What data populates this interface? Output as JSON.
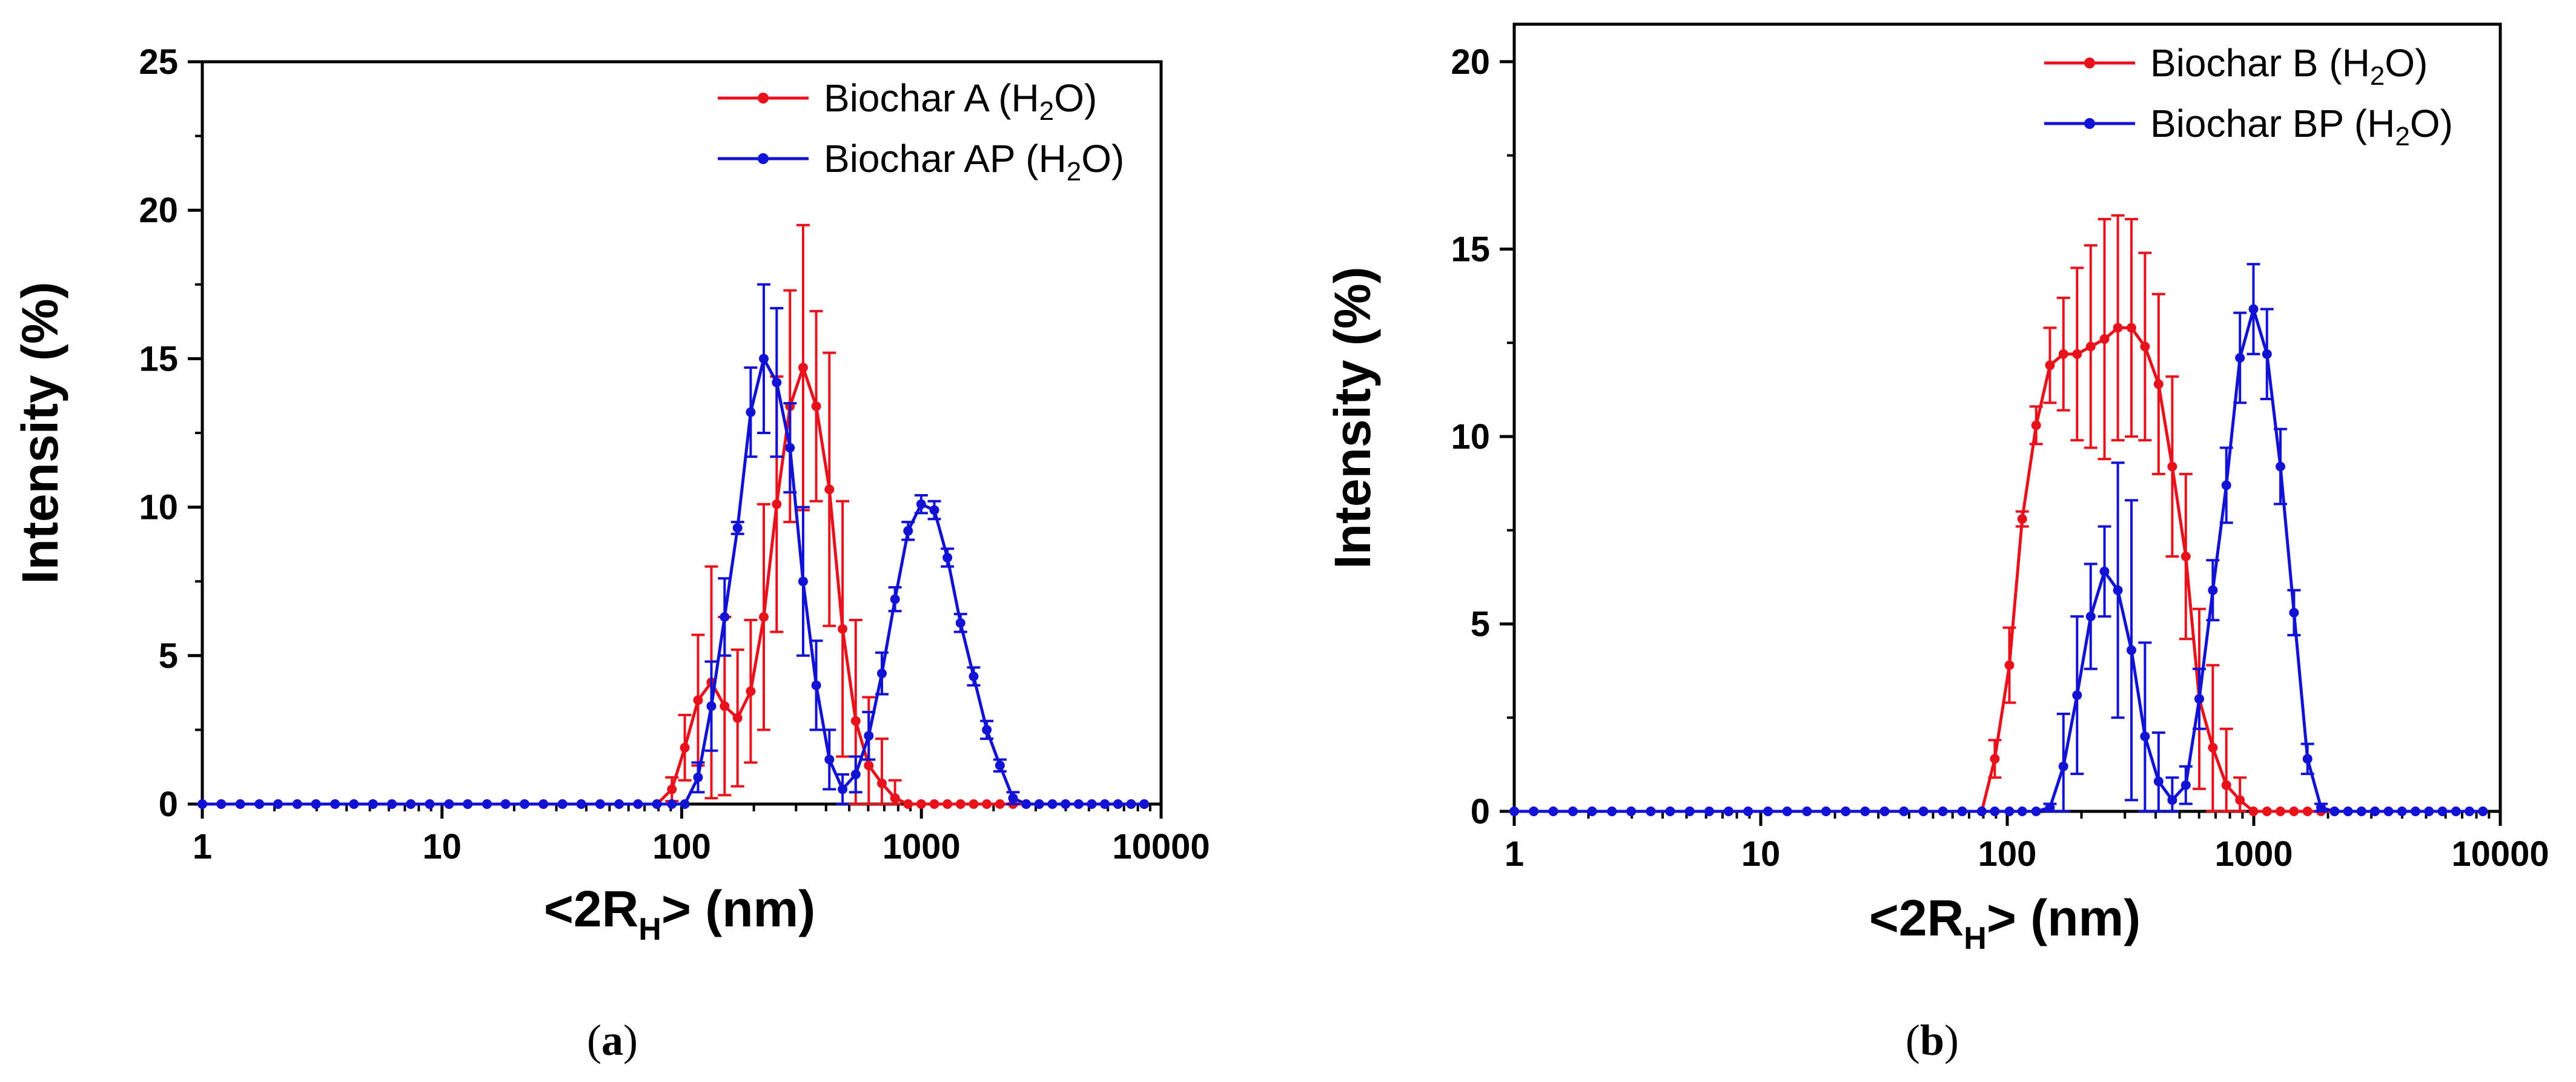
{
  "chart_data": [
    {
      "type": "line",
      "panel": "a",
      "caption": {
        "open": "(",
        "letter": "a",
        "close": ")"
      },
      "xscale": "log",
      "xlim": [
        1,
        10000
      ],
      "ylim": [
        0,
        25
      ],
      "xticks": [
        "1",
        "10",
        "100",
        "1000",
        "10000"
      ],
      "yticks": [
        "0",
        "5",
        "10",
        "15",
        "20",
        "25"
      ],
      "xlabel": {
        "pre": "<2R",
        "sub": "H",
        "post": "> (nm)"
      },
      "ylabel": "Intensity (%)",
      "legend_position": "top-right",
      "series": [
        {
          "name": "Biochar A (H2O)",
          "legend": {
            "pre": "Biochar A (H",
            "sub": "2",
            "post": "O)"
          },
          "color": "#e8121c",
          "x": [
            1.0,
            1.2,
            1.44,
            1.73,
            2.07,
            2.49,
            2.98,
            3.58,
            4.29,
            5.15,
            6.18,
            7.41,
            8.89,
            10.7,
            12.8,
            15.4,
            18.4,
            22.1,
            26.5,
            31.8,
            38.1,
            45.7,
            54.8,
            65.7,
            78.8,
            91,
            103,
            117,
            133,
            151,
            171,
            194,
            220,
            249,
            283,
            321,
            364,
            413,
            469,
            532,
            603,
            684,
            776,
            880,
            998,
            1132,
            1284,
            1456,
            1652,
            1874,
            2126,
            2411,
            2735,
            3102,
            3519,
            3992,
            4528,
            5136,
            5826,
            6608,
            7496,
            8500
          ],
          "y": [
            0,
            0,
            0,
            0,
            0,
            0,
            0,
            0,
            0,
            0,
            0,
            0,
            0,
            0,
            0,
            0,
            0,
            0,
            0,
            0,
            0,
            0,
            0,
            0,
            0,
            0.5,
            1.9,
            3.5,
            4.1,
            3.3,
            2.9,
            3.8,
            6.3,
            10.1,
            13.4,
            14.7,
            13.4,
            10.6,
            5.9,
            2.8,
            1.3,
            0.7,
            0.2,
            0,
            0,
            0,
            0,
            0,
            0,
            0,
            0,
            0,
            0,
            0,
            0,
            0,
            0,
            0,
            0,
            0,
            0,
            0
          ],
          "err": [
            0,
            0,
            0,
            0,
            0,
            0,
            0,
            0,
            0,
            0,
            0,
            0,
            0,
            0,
            0,
            0,
            0,
            0,
            0,
            0,
            0,
            0,
            0,
            0,
            0,
            0.4,
            1.1,
            2.2,
            3.9,
            3.0,
            2.3,
            2.4,
            3.8,
            4.3,
            3.9,
            4.8,
            3.2,
            4.6,
            4.3,
            3.4,
            2.3,
            1.5,
            0.6,
            0,
            0,
            0,
            0,
            0,
            0,
            0,
            0,
            0,
            0,
            0,
            0,
            0,
            0,
            0,
            0,
            0,
            0,
            0
          ]
        },
        {
          "name": "Biochar AP (H2O)",
          "legend": {
            "pre": "Biochar AP (H",
            "sub": "2",
            "post": "O)"
          },
          "color": "#1212d4",
          "x": [
            1.0,
            1.2,
            1.44,
            1.73,
            2.07,
            2.49,
            2.98,
            3.58,
            4.29,
            5.15,
            6.18,
            7.41,
            8.89,
            10.7,
            12.8,
            15.4,
            18.4,
            22.1,
            26.5,
            31.8,
            38.1,
            45.7,
            54.8,
            65.7,
            78.8,
            91,
            103,
            117,
            133,
            151,
            171,
            194,
            220,
            249,
            283,
            321,
            364,
            413,
            469,
            532,
            603,
            684,
            776,
            880,
            998,
            1132,
            1284,
            1456,
            1652,
            1874,
            2126,
            2411,
            2735,
            3102,
            3519,
            3992,
            4528,
            5136,
            5826,
            6608,
            7496,
            8500
          ],
          "y": [
            0,
            0,
            0,
            0,
            0,
            0,
            0,
            0,
            0,
            0,
            0,
            0,
            0,
            0,
            0,
            0,
            0,
            0,
            0,
            0,
            0,
            0,
            0,
            0,
            0,
            0,
            0,
            0.9,
            3.3,
            6.3,
            9.3,
            13.2,
            15.0,
            14.2,
            12.0,
            7.5,
            4.0,
            1.5,
            0.5,
            1.0,
            2.3,
            4.4,
            6.9,
            9.2,
            10.1,
            9.9,
            8.3,
            6.1,
            4.3,
            2.5,
            1.3,
            0.2,
            0,
            0,
            0,
            0,
            0,
            0,
            0,
            0,
            0,
            0
          ],
          "err": [
            0,
            0,
            0,
            0,
            0,
            0,
            0,
            0,
            0,
            0,
            0,
            0,
            0,
            0,
            0,
            0,
            0,
            0,
            0,
            0,
            0,
            0,
            0,
            0,
            0,
            0,
            0,
            0.5,
            1.5,
            1.3,
            0.2,
            1.5,
            2.5,
            2.5,
            1.5,
            2.5,
            1.5,
            1.0,
            0.5,
            0.6,
            0.8,
            0.7,
            0.4,
            0.3,
            0.3,
            0.3,
            0.3,
            0.3,
            0.3,
            0.3,
            0.2,
            0.2,
            0,
            0,
            0,
            0,
            0,
            0,
            0,
            0,
            0,
            0
          ]
        }
      ]
    },
    {
      "type": "line",
      "panel": "b",
      "caption": {
        "open": "(",
        "letter": "b",
        "close": ")"
      },
      "xscale": "log",
      "xlim": [
        1,
        10000
      ],
      "ylim": [
        0,
        21
      ],
      "xticks": [
        "1",
        "10",
        "100",
        "1000",
        "10000"
      ],
      "yticks": [
        "0",
        "5",
        "10",
        "15",
        "20"
      ],
      "xlabel": {
        "pre": "<2R",
        "sub": "H",
        "post": "> (nm)"
      },
      "ylabel": "Intensity (%)",
      "legend_position": "top-right",
      "series": [
        {
          "name": "Biochar B (H2O)",
          "legend": {
            "pre": "Biochar B (H",
            "sub": "2",
            "post": "O)"
          },
          "color": "#e8121c",
          "x": [
            1.0,
            1.2,
            1.44,
            1.73,
            2.07,
            2.49,
            2.98,
            3.58,
            4.29,
            5.15,
            6.18,
            7.41,
            8.89,
            10.7,
            12.8,
            15.4,
            18.4,
            22.1,
            26.5,
            31.8,
            38.1,
            45.7,
            54.8,
            65.7,
            78.8,
            89,
            102,
            115,
            131,
            149,
            169,
            192,
            218,
            248,
            281,
            319,
            362,
            411,
            467,
            530,
            601,
            682,
            774,
            879,
            997,
            1131,
            1283,
            1456,
            1652,
            1874,
            2126,
            2411,
            2735,
            3102,
            3519,
            3992,
            4528,
            5136,
            5826,
            6608,
            7496,
            8500
          ],
          "y": [
            0,
            0,
            0,
            0,
            0,
            0,
            0,
            0,
            0,
            0,
            0,
            0,
            0,
            0,
            0,
            0,
            0,
            0,
            0,
            0,
            0,
            0,
            0,
            0,
            0,
            1.4,
            3.9,
            7.8,
            10.3,
            11.9,
            12.2,
            12.2,
            12.4,
            12.6,
            12.9,
            12.9,
            12.4,
            11.4,
            9.2,
            6.8,
            3.0,
            1.7,
            0.7,
            0.3,
            0,
            0,
            0,
            0,
            0,
            0,
            0,
            0,
            0,
            0,
            0,
            0,
            0,
            0,
            0,
            0,
            0,
            0
          ],
          "err": [
            0,
            0,
            0,
            0,
            0,
            0,
            0,
            0,
            0,
            0,
            0,
            0,
            0,
            0,
            0,
            0,
            0,
            0,
            0,
            0,
            0,
            0,
            0,
            0,
            0,
            0.5,
            1.0,
            0.2,
            0.5,
            1.0,
            1.5,
            2.3,
            2.7,
            3.2,
            3.0,
            2.9,
            2.5,
            2.4,
            2.4,
            2.2,
            2.4,
            2.2,
            1.5,
            0.6,
            0,
            0,
            0,
            0,
            0,
            0,
            0,
            0,
            0,
            0,
            0,
            0,
            0,
            0,
            0,
            0,
            0,
            0
          ]
        },
        {
          "name": "Biochar BP (H2O)",
          "legend": {
            "pre": "Biochar BP (H",
            "sub": "2",
            "post": "O)"
          },
          "color": "#1212d4",
          "x": [
            1.0,
            1.2,
            1.44,
            1.73,
            2.07,
            2.49,
            2.98,
            3.58,
            4.29,
            5.15,
            6.18,
            7.41,
            8.89,
            10.7,
            12.8,
            15.4,
            18.4,
            22.1,
            26.5,
            31.8,
            38.1,
            45.7,
            54.8,
            65.7,
            78.8,
            89,
            102,
            115,
            131,
            149,
            169,
            192,
            218,
            248,
            281,
            319,
            362,
            411,
            467,
            530,
            601,
            682,
            774,
            879,
            997,
            1131,
            1283,
            1456,
            1652,
            1874,
            2126,
            2411,
            2735,
            3102,
            3519,
            3992,
            4528,
            5136,
            5826,
            6608,
            7496,
            8500
          ],
          "y": [
            0,
            0,
            0,
            0,
            0,
            0,
            0,
            0,
            0,
            0,
            0,
            0,
            0,
            0,
            0,
            0,
            0,
            0,
            0,
            0,
            0,
            0,
            0,
            0,
            0,
            0,
            0,
            0,
            0,
            0.1,
            1.2,
            3.1,
            5.2,
            6.4,
            5.9,
            4.3,
            2.0,
            0.8,
            0.3,
            0.7,
            3.0,
            5.9,
            8.7,
            12.1,
            13.4,
            12.2,
            9.2,
            5.3,
            1.4,
            0.1,
            0,
            0,
            0,
            0,
            0,
            0,
            0,
            0,
            0,
            0,
            0,
            0
          ],
          "err": [
            0,
            0,
            0,
            0,
            0,
            0,
            0,
            0,
            0,
            0,
            0,
            0,
            0,
            0,
            0,
            0,
            0,
            0,
            0,
            0,
            0,
            0,
            0,
            0,
            0,
            0,
            0,
            0,
            0,
            0.1,
            1.4,
            2.1,
            1.4,
            1.2,
            3.4,
            4.0,
            2.5,
            1.3,
            0.6,
            0.5,
            0.8,
            0.8,
            1.0,
            1.2,
            1.2,
            1.2,
            1.0,
            0.6,
            0.4,
            0.1,
            0,
            0,
            0,
            0,
            0,
            0,
            0,
            0,
            0,
            0,
            0,
            0
          ]
        }
      ]
    }
  ]
}
